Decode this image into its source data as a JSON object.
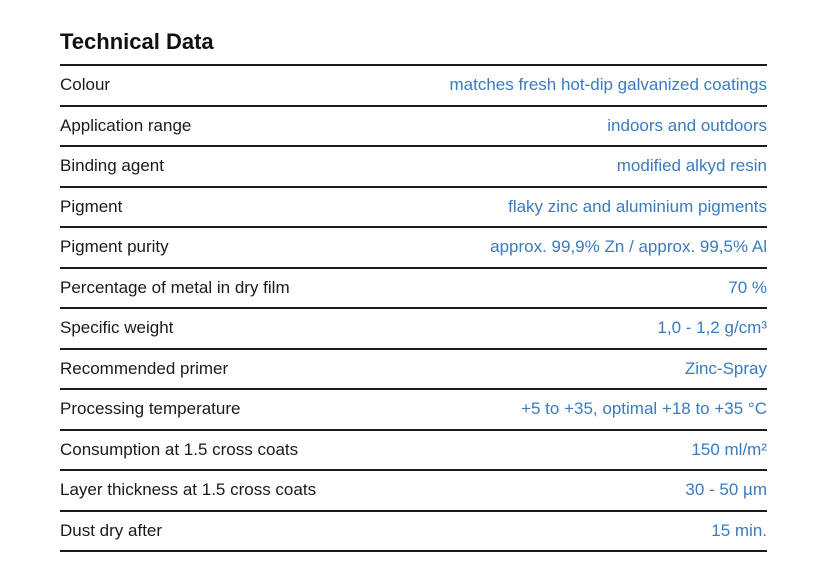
{
  "title": "Technical Data",
  "rows": [
    {
      "label": "Colour",
      "value": "matches fresh hot-dip galvanized coatings"
    },
    {
      "label": "Application range",
      "value": "indoors and outdoors"
    },
    {
      "label": "Binding agent",
      "value": "modified alkyd resin"
    },
    {
      "label": "Pigment",
      "value": "flaky zinc and aluminium pigments"
    },
    {
      "label": "Pigment purity",
      "value": "approx. 99,9% Zn / approx. 99,5% Al"
    },
    {
      "label": "Percentage of metal in dry film",
      "value": "70 %"
    },
    {
      "label": "Specific weight",
      "value": "1,0 - 1,2 g/cm³"
    },
    {
      "label": "Recommended primer",
      "value": "Zinc-Spray"
    },
    {
      "label": "Processing temperature",
      "value": "+5 to +35, optimal +18 to +35 °C"
    },
    {
      "label": "Consumption at 1.5 cross coats",
      "value": "150 ml/m²"
    },
    {
      "label": "Layer thickness at 1.5 cross coats",
      "value": "30 - 50 µm"
    },
    {
      "label": "Dust dry after",
      "value": "15 min."
    }
  ],
  "colors": {
    "label": "#1a1a1a",
    "value": "#3a7bbf",
    "rule": "#1a1a1a"
  }
}
